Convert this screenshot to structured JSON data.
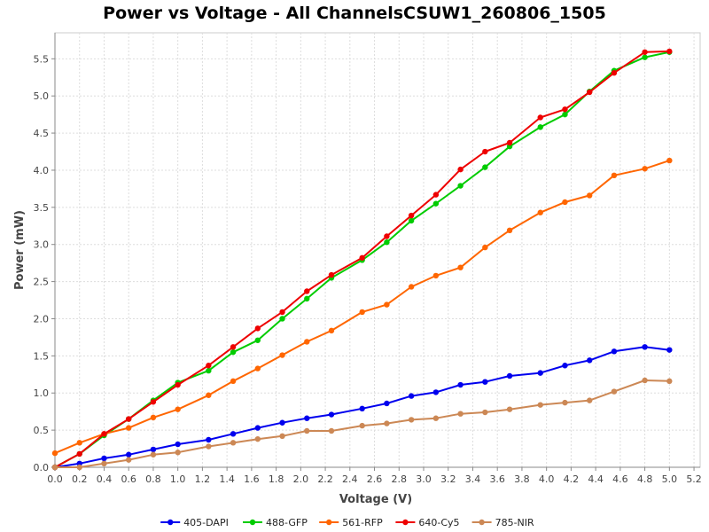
{
  "chart_data": {
    "type": "line",
    "title": "Power vs Voltage - All ChannelsCSUW1_260806_1505",
    "xlabel": "Voltage (V)",
    "ylabel": "Power (mW)",
    "xlim": [
      0.0,
      5.25
    ],
    "ylim": [
      0.0,
      5.85
    ],
    "xticks": [
      "0.0",
      "0.2",
      "0.4",
      "0.6",
      "0.8",
      "1.0",
      "1.2",
      "1.4",
      "1.6",
      "1.8",
      "2.0",
      "2.2",
      "2.4",
      "2.6",
      "2.8",
      "3.0",
      "3.2",
      "3.4",
      "3.6",
      "3.8",
      "4.0",
      "4.2",
      "4.4",
      "4.6",
      "4.8",
      "5.0",
      "5.2"
    ],
    "yticks": [
      "0.0",
      "0.5",
      "1.0",
      "1.5",
      "2.0",
      "2.5",
      "3.0",
      "3.5",
      "4.0",
      "4.5",
      "5.0",
      "5.5"
    ],
    "grid": true,
    "legend_position": "bottom",
    "x": [
      0.0,
      0.2,
      0.4,
      0.6,
      0.8,
      1.0,
      1.25,
      1.45,
      1.65,
      1.85,
      2.05,
      2.25,
      2.5,
      2.7,
      2.9,
      3.1,
      3.3,
      3.5,
      3.7,
      3.95,
      4.15,
      4.35,
      4.55,
      4.8,
      5.0
    ],
    "series": [
      {
        "name": "405-DAPI",
        "color": "#0000ee",
        "values": [
          0.0,
          0.05,
          0.12,
          0.17,
          0.24,
          0.31,
          0.37,
          0.45,
          0.53,
          0.6,
          0.66,
          0.71,
          0.79,
          0.86,
          0.96,
          1.01,
          1.11,
          1.15,
          1.23,
          1.27,
          1.37,
          1.44,
          1.56,
          1.62,
          1.58
        ]
      },
      {
        "name": "488-GFP",
        "color": "#00cc00",
        "values": [
          0.0,
          0.18,
          0.43,
          0.65,
          0.9,
          1.14,
          1.3,
          1.55,
          1.71,
          2.0,
          2.27,
          2.55,
          2.79,
          3.03,
          3.32,
          3.55,
          3.79,
          4.04,
          4.32,
          4.58,
          4.75,
          5.06,
          5.34,
          5.52,
          5.59
        ]
      },
      {
        "name": "561-RFP",
        "color": "#ff6600",
        "values": [
          0.19,
          0.33,
          0.45,
          0.53,
          0.67,
          0.78,
          0.97,
          1.16,
          1.33,
          1.51,
          1.69,
          1.84,
          2.09,
          2.19,
          2.43,
          2.58,
          2.69,
          2.96,
          3.19,
          3.43,
          3.57,
          3.66,
          3.93,
          4.02,
          4.13
        ]
      },
      {
        "name": "640-Cy5",
        "color": "#ee0000",
        "values": [
          0.0,
          0.18,
          0.45,
          0.65,
          0.88,
          1.11,
          1.37,
          1.62,
          1.87,
          2.09,
          2.37,
          2.59,
          2.82,
          3.11,
          3.39,
          3.67,
          4.01,
          4.25,
          4.37,
          4.71,
          4.82,
          5.05,
          5.31,
          5.59,
          5.6
        ]
      },
      {
        "name": "785-NIR",
        "color": "#cc8855",
        "values": [
          0.0,
          0.0,
          0.05,
          0.1,
          0.17,
          0.2,
          0.28,
          0.33,
          0.38,
          0.42,
          0.49,
          0.49,
          0.56,
          0.59,
          0.64,
          0.66,
          0.72,
          0.74,
          0.78,
          0.84,
          0.87,
          0.9,
          1.02,
          1.17,
          1.16
        ]
      }
    ]
  }
}
